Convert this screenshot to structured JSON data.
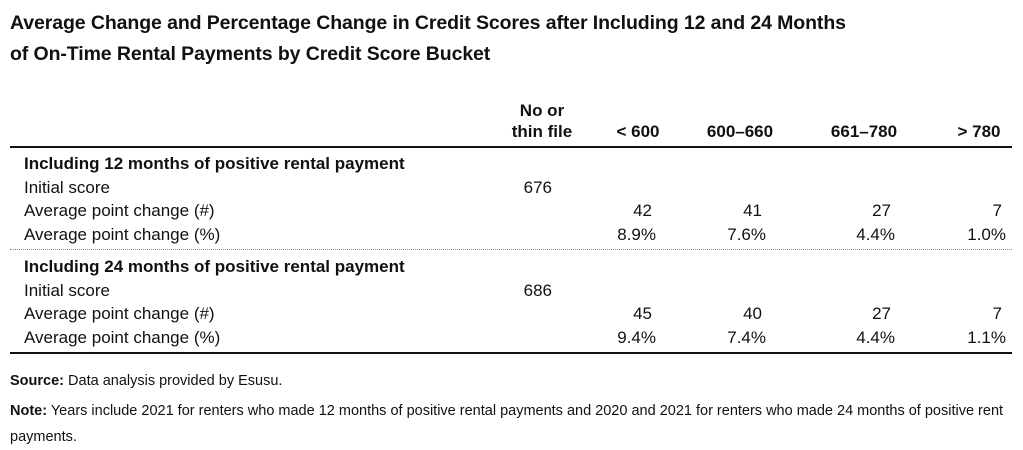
{
  "title": {
    "line1": "Average Change and Percentage Change in Credit Scores after Including 12 and 24 Months",
    "line2": "of On-Time Rental Payments by Credit Score Bucket"
  },
  "header": {
    "col_thin_line1": "No or",
    "col_thin_line2": "thin file",
    "col_lt600": "< 600",
    "col_600_660": "600–660",
    "col_661_780": "661–780",
    "col_gt780": "> 780"
  },
  "sections": [
    {
      "heading": "Including 12 months of positive rental payment",
      "initial_label": "Initial score",
      "initial_value": "676",
      "change_num_label": "Average point change (#)",
      "change_num": [
        "42",
        "41",
        "27",
        "7"
      ],
      "change_pct_label": "Average point change (%)",
      "change_pct": [
        "8.9%",
        "7.6%",
        "4.4%",
        "1.0%"
      ]
    },
    {
      "heading": "Including 24 months of positive rental payment",
      "initial_label": "Initial score",
      "initial_value": "686",
      "change_num_label": "Average point change (#)",
      "change_num": [
        "45",
        "40",
        "27",
        "7"
      ],
      "change_pct_label": "Average point change (%)",
      "change_pct": [
        "9.4%",
        "7.4%",
        "4.4%",
        "1.1%"
      ]
    }
  ],
  "footer": {
    "source_label": "Source:",
    "source_text": "Data analysis provided by Esusu.",
    "note_label": "Note:",
    "note_text": "Years include 2021 for renters who made 12 months of positive rental payments and 2020 and 2021 for renters who made 24 months of positive rent payments."
  }
}
